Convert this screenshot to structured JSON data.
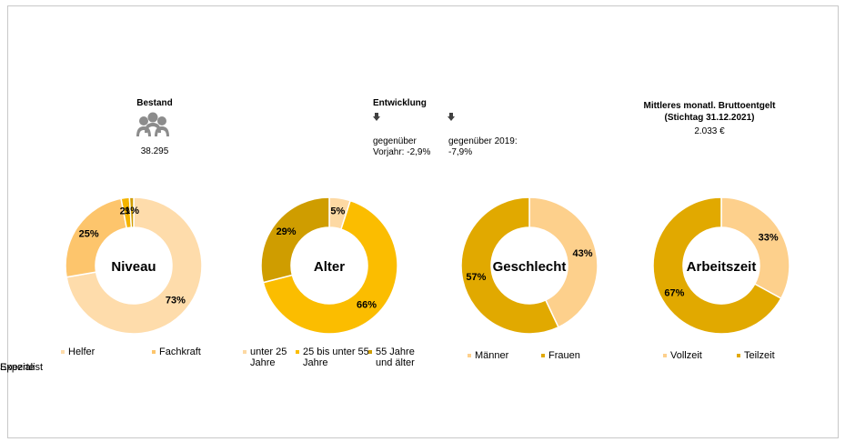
{
  "kpis": {
    "bestand_title": "Bestand",
    "bestand_value": "38.295",
    "entwicklung_title": "Entwicklung",
    "vorjahr_label": "gegenüber Vorjahr: -2,9%",
    "v2019_label": "gegenüber 2019: -7,9%",
    "entgelt_title": "Mittleres monatl. Bruttoentgelt (Stichtag 31.12.2021)",
    "entgelt_value": "2.033 €"
  },
  "chart_data": [
    {
      "type": "donut",
      "title": "Niveau",
      "categories": [
        "Helfer",
        "Fachkraft",
        "Spezialist",
        "Experte"
      ],
      "values": [
        73,
        25,
        2,
        1
      ],
      "value_labels": [
        "73%",
        "25%",
        "2%",
        "1%"
      ],
      "colors": [
        "#fedcab",
        "#fdc56c",
        "#f4b400",
        "#d09c00"
      ]
    },
    {
      "type": "donut",
      "title": "Alter",
      "categories": [
        "unter 25 Jahre",
        "25 bis unter 55 Jahre",
        "55 Jahre und älter"
      ],
      "values": [
        5,
        66,
        29
      ],
      "value_labels": [
        "5%",
        "66%",
        "29%"
      ],
      "colors": [
        "#fdd9a3",
        "#fbbd00",
        "#cf9d00"
      ]
    },
    {
      "type": "donut",
      "title": "Geschlecht",
      "categories": [
        "Männer",
        "Frauen"
      ],
      "values": [
        43,
        57
      ],
      "value_labels": [
        "43%",
        "57%"
      ],
      "colors": [
        "#fdd08c",
        "#e1a900"
      ]
    },
    {
      "type": "donut",
      "title": "Arbeitszeit",
      "categories": [
        "Vollzeit",
        "Teilzeit"
      ],
      "values": [
        33,
        67
      ],
      "value_labels": [
        "33%",
        "67%"
      ],
      "colors": [
        "#fdd08c",
        "#e1a900"
      ]
    }
  ]
}
